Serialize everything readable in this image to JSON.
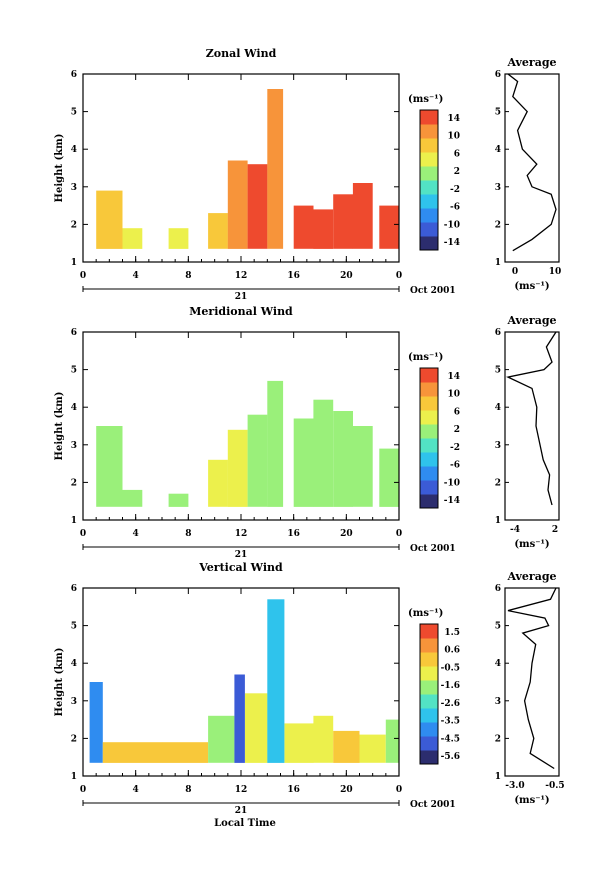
{
  "panels": [
    {
      "title": "Zonal Wind",
      "ylabel": "Height (km)",
      "yticks": [
        "1",
        "2",
        "3",
        "4",
        "5",
        "6"
      ],
      "xticks": [
        "0",
        "4",
        "8",
        "12",
        "16",
        "20",
        "0"
      ],
      "day_label": "21",
      "month_label": "Oct 2001",
      "cbar_unit": "(ms⁻¹)",
      "cbar_ticks": [
        "14",
        "10",
        "6",
        "2",
        "-2",
        "-6",
        "-10",
        "-14"
      ],
      "avg_title": "Average",
      "avg_xticks": [
        "0",
        "10"
      ],
      "avg_xlabel": "(ms⁻¹)"
    },
    {
      "title": "Meridional Wind",
      "ylabel": "Height (km)",
      "yticks": [
        "1",
        "2",
        "3",
        "4",
        "5",
        "6"
      ],
      "xticks": [
        "0",
        "4",
        "8",
        "12",
        "16",
        "20",
        "0"
      ],
      "day_label": "21",
      "month_label": "Oct 2001",
      "cbar_unit": "(ms⁻¹)",
      "cbar_ticks": [
        "14",
        "10",
        "6",
        "2",
        "-2",
        "-6",
        "-10",
        "-14"
      ],
      "avg_title": "Average",
      "avg_xticks": [
        "-4",
        "2"
      ],
      "avg_xlabel": "(ms⁻¹)"
    },
    {
      "title": "Vertical Wind",
      "ylabel": "Height (km)",
      "yticks": [
        "1",
        "2",
        "3",
        "4",
        "5",
        "6"
      ],
      "xticks": [
        "0",
        "4",
        "8",
        "12",
        "16",
        "20",
        "0"
      ],
      "day_label": "21",
      "month_label": "Oct 2001",
      "xlabel": "Local Time",
      "cbar_unit": "(ms⁻¹)",
      "cbar_ticks": [
        "1.5",
        "0.6",
        "-0.5",
        "-1.6",
        "-2.6",
        "-3.5",
        "-4.5",
        "-5.6"
      ],
      "avg_title": "Average",
      "avg_xticks": [
        "-3.0",
        "-0.5"
      ],
      "avg_xlabel": "(ms⁻¹)"
    }
  ],
  "chart_data": {
    "type": "heatmap",
    "x_unit_label": "Local Time",
    "xlim_hours": [
      0,
      24
    ],
    "ylim_km": [
      1,
      6
    ],
    "series": [
      {
        "name": "Zonal Wind",
        "clim": [
          -14,
          14
        ],
        "bins": [
          [
            1,
            3
          ],
          [
            3,
            4.5
          ],
          [
            6.5,
            8
          ],
          [
            9.5,
            11
          ],
          [
            11,
            12.5
          ],
          [
            12.5,
            14
          ],
          [
            14,
            15.2
          ],
          [
            16,
            17.5
          ],
          [
            17.5,
            19
          ],
          [
            19,
            20.5
          ],
          [
            20.5,
            22
          ],
          [
            22.5,
            24
          ]
        ],
        "tops_km": [
          2.9,
          1.9,
          1.9,
          2.3,
          3.7,
          3.6,
          5.6,
          2.5,
          2.4,
          2.8,
          3.1,
          2.5
        ],
        "values": [
          6,
          3,
          4,
          8,
          11,
          12,
          10,
          13,
          14,
          13,
          14,
          12
        ],
        "average_profile": {
          "height_km": [
            1.3,
            1.6,
            2.0,
            2.4,
            2.8,
            3.0,
            3.3,
            3.6,
            4.0,
            4.5,
            5.0,
            5.4,
            5.8,
            6.0
          ],
          "value": [
            1,
            5,
            9,
            10,
            9,
            5,
            4,
            6,
            3,
            2,
            4,
            1,
            2,
            0
          ]
        }
      },
      {
        "name": "Meridional Wind",
        "clim": [
          -14,
          14
        ],
        "bins": [
          [
            1,
            3
          ],
          [
            3,
            4.5
          ],
          [
            6.5,
            8
          ],
          [
            9.5,
            11
          ],
          [
            11,
            12.5
          ],
          [
            12.5,
            14
          ],
          [
            14,
            15.2
          ],
          [
            16,
            17.5
          ],
          [
            17.5,
            19
          ],
          [
            19,
            20.5
          ],
          [
            20.5,
            22
          ],
          [
            22.5,
            24
          ]
        ],
        "tops_km": [
          3.5,
          1.8,
          1.7,
          2.6,
          3.4,
          3.8,
          4.7,
          3.7,
          4.2,
          3.9,
          3.5,
          2.9
        ],
        "values": [
          2,
          1,
          2,
          4,
          3,
          2,
          0,
          1,
          0,
          1,
          2,
          1
        ],
        "average_profile": {
          "height_km": [
            1.4,
            1.8,
            2.2,
            2.6,
            3.0,
            3.5,
            4.0,
            4.5,
            4.8,
            5.0,
            5.2,
            5.6,
            6.0
          ],
          "value": [
            1.5,
            1.0,
            1.2,
            0.4,
            0.0,
            -0.5,
            -0.4,
            -1.0,
            -4.0,
            0.5,
            1.5,
            0.8,
            2.0
          ]
        }
      },
      {
        "name": "Vertical Wind",
        "clim": [
          -5.6,
          1.5
        ],
        "bins": [
          [
            0.5,
            1.5
          ],
          [
            1.5,
            6
          ],
          [
            6,
            9.5
          ],
          [
            9.5,
            11.5
          ],
          [
            11.5,
            12.3
          ],
          [
            12.3,
            14
          ],
          [
            14,
            15.3
          ],
          [
            15.3,
            17.5
          ],
          [
            17.5,
            19
          ],
          [
            19,
            21
          ],
          [
            21,
            23
          ],
          [
            23,
            24
          ]
        ],
        "tops_km": [
          3.5,
          1.9,
          1.9,
          2.6,
          3.7,
          3.2,
          5.7,
          2.4,
          2.6,
          2.2,
          2.1,
          2.5
        ],
        "values": [
          -4.0,
          -0.3,
          -0.4,
          -1.6,
          -4.5,
          -1.2,
          -3.0,
          -0.8,
          -1.2,
          -0.6,
          -0.9,
          -1.8
        ],
        "average_profile": {
          "height_km": [
            1.2,
            1.6,
            2.0,
            2.5,
            3.0,
            3.5,
            4.0,
            4.5,
            4.8,
            5.0,
            5.2,
            5.4,
            5.7,
            6.0
          ],
          "value": [
            -0.5,
            -1.8,
            -1.6,
            -1.9,
            -2.1,
            -1.8,
            -1.7,
            -1.5,
            -2.2,
            -0.8,
            -1.0,
            -3.0,
            -0.7,
            -0.4
          ]
        }
      }
    ],
    "colormap": [
      "#2c2d6e",
      "#3b5bd6",
      "#2f8cf0",
      "#2fc3ec",
      "#52e3c4",
      "#9af07a",
      "#ecf04c",
      "#f8c83a",
      "#f7943a",
      "#ee4a2e"
    ]
  }
}
